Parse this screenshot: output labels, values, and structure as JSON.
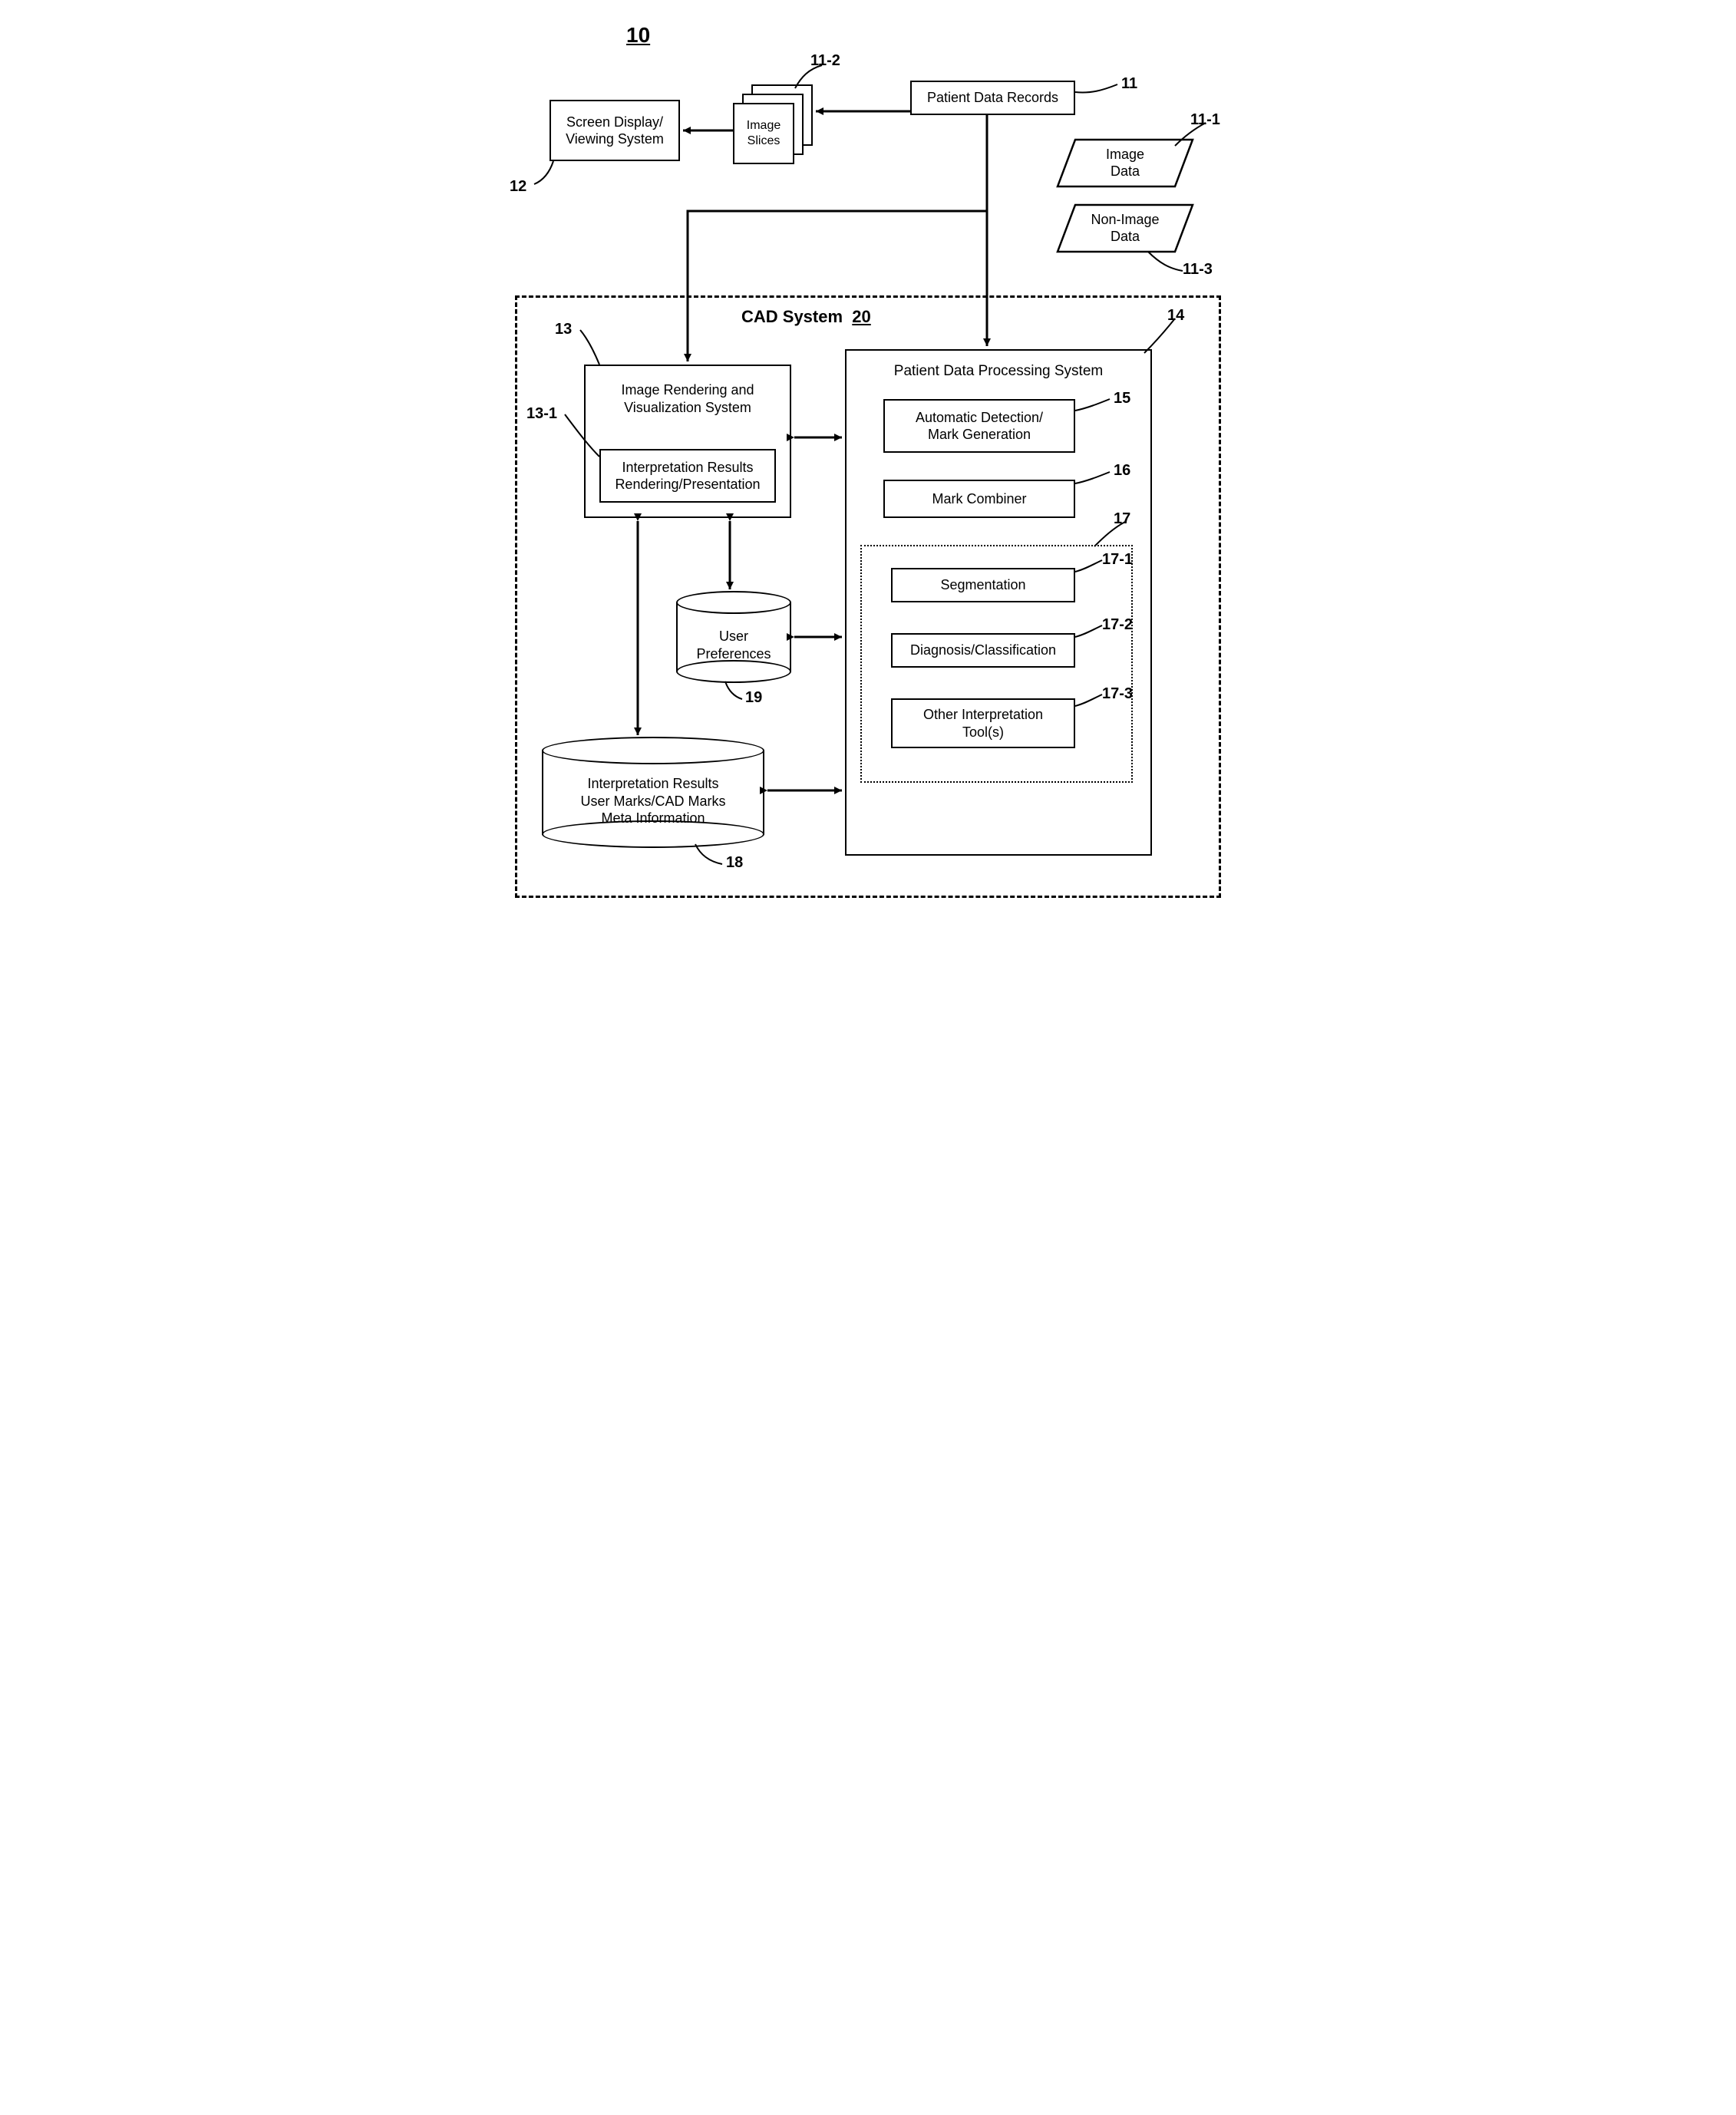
{
  "figure_number": "10",
  "cad_system": {
    "title_text": "CAD System",
    "title_num": "20"
  },
  "blocks": {
    "screen_display": {
      "text": "Screen Display/\nViewing System",
      "ref": "12"
    },
    "image_slices": {
      "text": "Image\nSlices",
      "ref": "11-2"
    },
    "patient_records": {
      "text": "Patient Data Records",
      "ref": "11"
    },
    "image_data": {
      "text": "Image\nData",
      "ref": "11-1"
    },
    "non_image_data": {
      "text": "Non-Image\nData",
      "ref": "11-3"
    },
    "rendering_sys": {
      "text": "Image Rendering and\nVisualization System",
      "ref": "13"
    },
    "interp_results_render": {
      "text": "Interpretation Results\nRendering/Presentation",
      "ref": "13-1"
    },
    "pdps": {
      "text": "Patient Data Processing System",
      "ref": "14"
    },
    "auto_detect": {
      "text": "Automatic Detection/\nMark Generation",
      "ref": "15"
    },
    "mark_combiner": {
      "text": "Mark Combiner",
      "ref": "16"
    },
    "interp_group": {
      "ref": "17"
    },
    "segmentation": {
      "text": "Segmentation",
      "ref": "17-1"
    },
    "diag_class": {
      "text": "Diagnosis/Classification",
      "ref": "17-2"
    },
    "other_tools": {
      "text": "Other Interpretation\nTool(s)",
      "ref": "17-3"
    },
    "user_prefs": {
      "text": "User\nPreferences",
      "ref": "19"
    },
    "interp_results_db": {
      "text": "Interpretation Results\nUser Marks/CAD Marks\nMeta Information",
      "ref": "18"
    }
  },
  "style": {
    "stroke": "#000000",
    "stroke_width": 2.5,
    "arrow_width": 3,
    "dash": "10,8",
    "dot": "3,5"
  }
}
